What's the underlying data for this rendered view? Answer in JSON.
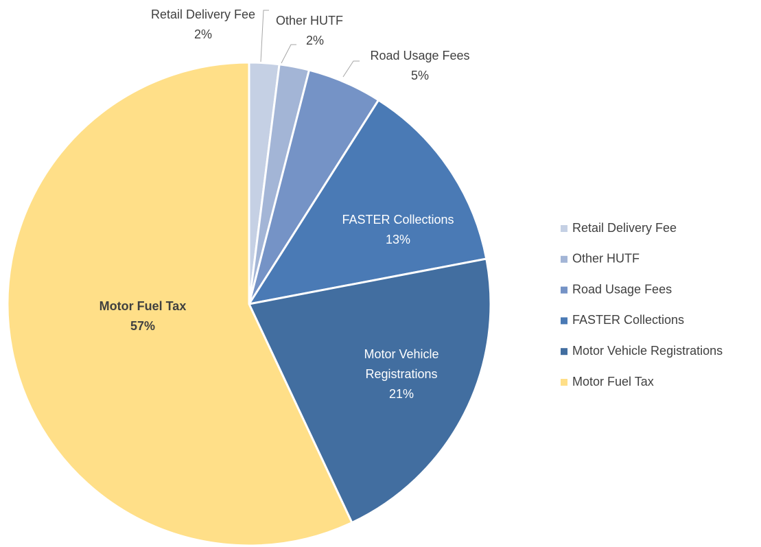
{
  "chart_data": {
    "type": "pie",
    "categories": [
      "Retail Delivery Fee",
      "Other HUTF",
      "Road Usage Fees",
      "FASTER Collections",
      "Motor Vehicle Registrations",
      "Motor Fuel Tax"
    ],
    "values": [
      2,
      2,
      5,
      13,
      21,
      57
    ],
    "value_labels": [
      "2%",
      "2%",
      "5%",
      "13%",
      "21%",
      "57%"
    ],
    "colors": [
      "#c5d0e4",
      "#a3b5d6",
      "#7593c6",
      "#4a7ab5",
      "#426ea0",
      "#ffdf88"
    ],
    "legend": "right"
  }
}
